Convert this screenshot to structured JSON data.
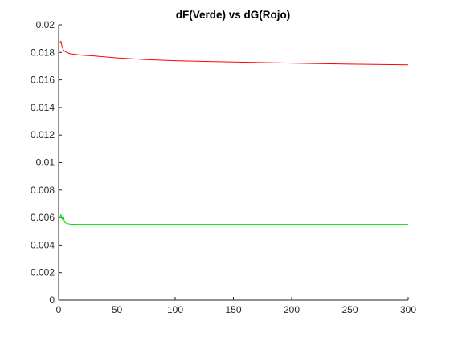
{
  "chart_data": {
    "type": "line",
    "title": "dF(Verde) vs dG(Rojo)",
    "xlabel": "",
    "ylabel": "",
    "xlim": [
      0,
      300
    ],
    "ylim": [
      0,
      0.02
    ],
    "x_ticks": [
      0,
      50,
      100,
      150,
      200,
      250,
      300
    ],
    "y_ticks": [
      0,
      0.002,
      0.004,
      0.006,
      0.008,
      0.01,
      0.012,
      0.014,
      0.016,
      0.018,
      0.02
    ],
    "x_tick_labels": [
      "0",
      "50",
      "100",
      "150",
      "200",
      "250",
      "300"
    ],
    "y_tick_labels": [
      "0",
      "0.002",
      "0.004",
      "0.006",
      "0.008",
      "0.01",
      "0.012",
      "0.014",
      "0.016",
      "0.018",
      "0.02"
    ],
    "grid": false,
    "legend": "none",
    "series": [
      {
        "color": "#ff0000",
        "x": [
          1,
          2,
          3,
          4,
          5,
          7,
          10,
          15,
          20,
          30,
          50,
          75,
          100,
          150,
          200,
          250,
          300
        ],
        "y": [
          0.0187,
          0.0188,
          0.0184,
          0.0182,
          0.0181,
          0.018,
          0.0179,
          0.01785,
          0.0178,
          0.01775,
          0.0176,
          0.01748,
          0.0174,
          0.0173,
          0.01722,
          0.01715,
          0.0171
        ]
      },
      {
        "color": "#00dd00",
        "x": [
          1,
          2,
          3,
          4,
          5,
          6,
          8,
          10,
          15,
          20,
          50,
          100,
          150,
          200,
          250,
          300
        ],
        "y": [
          0.006,
          0.0062,
          0.0059,
          0.0061,
          0.0057,
          0.0056,
          0.00555,
          0.00552,
          0.0055,
          0.0055,
          0.0055,
          0.0055,
          0.0055,
          0.0055,
          0.0055,
          0.0055
        ]
      },
      {
        "color": "#dd0000",
        "x": [
          0,
          300
        ],
        "y": [
          0,
          0
        ]
      }
    ]
  }
}
